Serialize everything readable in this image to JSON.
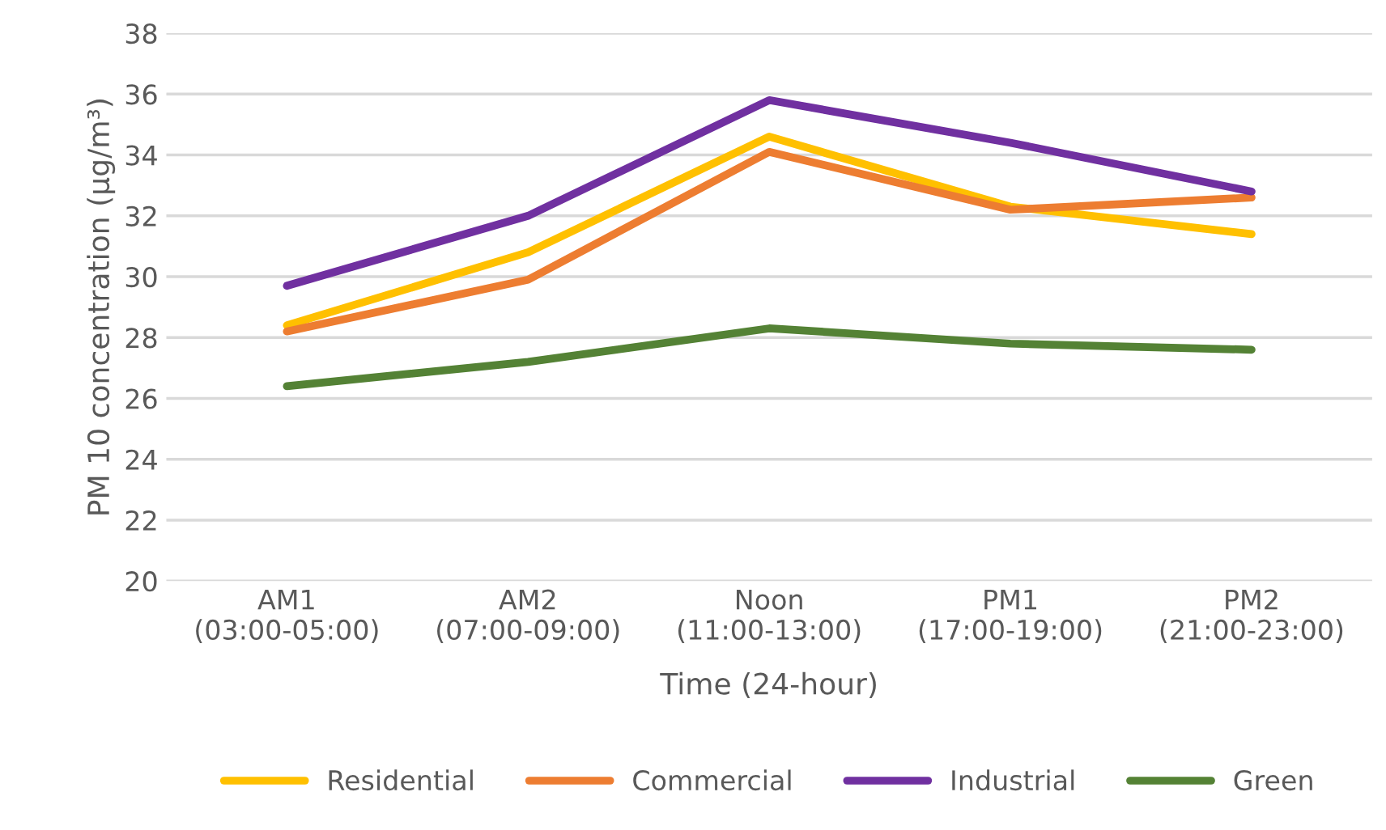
{
  "chart_data": {
    "type": "line",
    "xlabel": "Time (24-hour)",
    "ylabel": "PM 10 concentration (μg/m³)",
    "categories": [
      "AM1\n(03:00-05:00)",
      "AM2\n(07:00-09:00)",
      "Noon\n(11:00-13:00)",
      "PM1\n(17:00-19:00)",
      "PM2\n(21:00-23:00)"
    ],
    "series": [
      {
        "name": "Residential",
        "color": "#ffc000",
        "values": [
          28.4,
          30.8,
          34.6,
          32.3,
          31.4
        ]
      },
      {
        "name": "Commercial",
        "color": "#ed7d31",
        "values": [
          28.2,
          29.9,
          34.1,
          32.2,
          32.6
        ]
      },
      {
        "name": "Industrial",
        "color": "#7030a0",
        "values": [
          29.7,
          32.0,
          35.8,
          34.4,
          32.8
        ]
      },
      {
        "name": "Green",
        "color": "#548235",
        "values": [
          26.4,
          27.2,
          28.3,
          27.8,
          27.6
        ]
      }
    ],
    "ylim": [
      20,
      38
    ],
    "yticks": [
      20,
      22,
      24,
      26,
      28,
      30,
      32,
      34,
      36,
      38
    ],
    "grid": "y",
    "legend": "bottom",
    "line_style": "solid",
    "marker": "none"
  }
}
